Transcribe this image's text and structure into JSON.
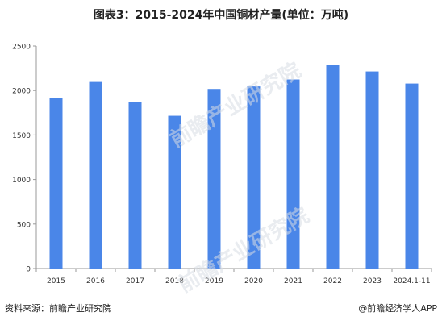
{
  "chart_data": {
    "type": "bar",
    "title": "图表3：2015-2024年中国铜材产量(单位：万吨)",
    "xlabel": "",
    "ylabel": "",
    "categories": [
      "2015",
      "2016",
      "2017",
      "2018",
      "2019",
      "2020",
      "2021",
      "2022",
      "2023",
      "2024.1-11"
    ],
    "values": [
      1918,
      2096,
      1868,
      1716,
      2018,
      2046,
      2124,
      2286,
      2214,
      2078
    ],
    "ylim": [
      0,
      2500
    ],
    "yticks": [
      0,
      500,
      1000,
      1500,
      2000,
      2500
    ],
    "bar_color": "#4a86e8",
    "grid": false,
    "legend": "none"
  },
  "footer": {
    "source": "资料来源：前瞻产业研究院",
    "brand": "@前瞻经济学人APP"
  },
  "watermark": {
    "text": "前瞻产业研究院"
  }
}
